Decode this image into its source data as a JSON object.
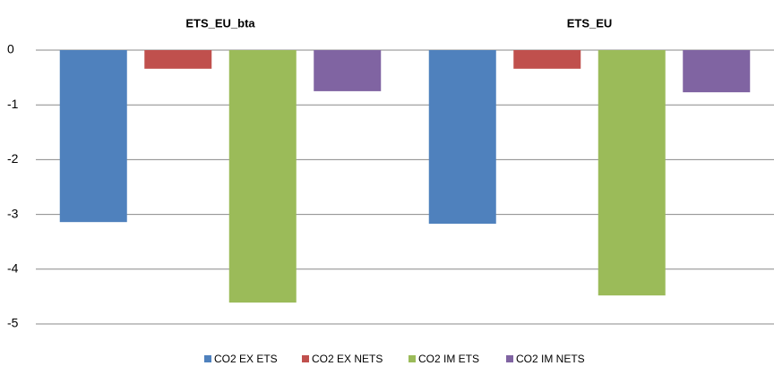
{
  "chart_data": {
    "type": "bar",
    "categories": [
      "ETS_EU_bta",
      "ETS_EU"
    ],
    "series": [
      {
        "name": "CO2 EX ETS",
        "color": "#4f81bd",
        "values": [
          -3.14,
          -3.17
        ]
      },
      {
        "name": "CO2 EX NETS",
        "color": "#c0504d",
        "values": [
          -0.34,
          -0.34
        ]
      },
      {
        "name": "CO2 IM ETS",
        "color": "#9bbb59",
        "values": [
          -4.61,
          -4.48
        ]
      },
      {
        "name": "CO2 IM NETS",
        "color": "#8064a2",
        "values": [
          -0.75,
          -0.77
        ]
      }
    ],
    "ylim": [
      -5,
      0.45
    ],
    "yticks": [
      0,
      -1,
      -2,
      -3,
      -4,
      -5
    ],
    "grid": true,
    "legend": "bottom"
  }
}
